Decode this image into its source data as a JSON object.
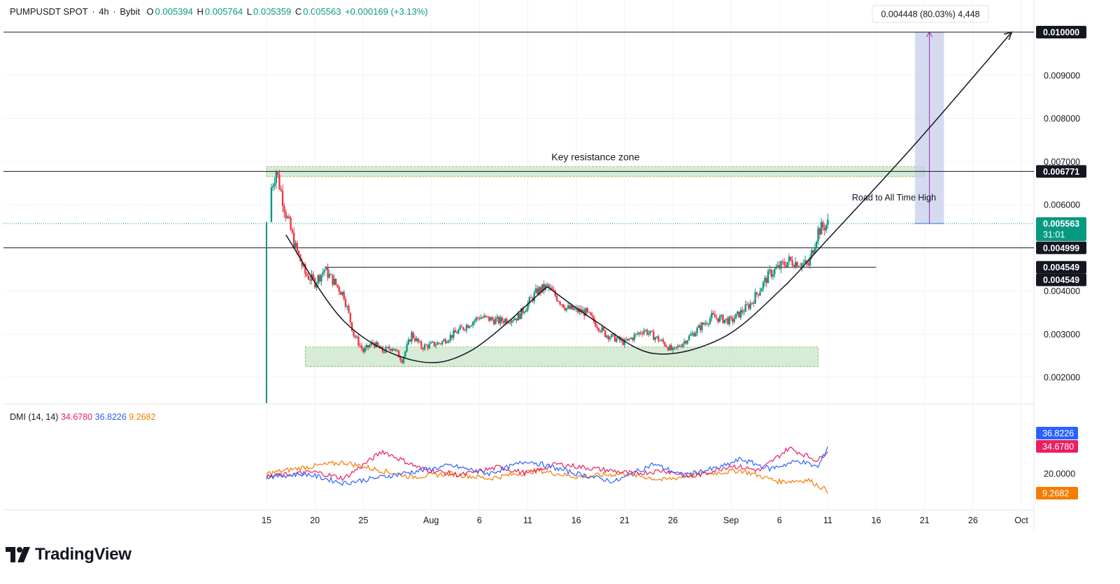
{
  "header": {
    "symbol": "PUMPUSDT SPOT",
    "sep1": "·",
    "interval": "4h",
    "sep2": "·",
    "exchange": "Bybit",
    "o_label": "O",
    "o_value": "0.005394",
    "h_label": "H",
    "h_value": "0.005764",
    "l_label": "L",
    "l_value": "0.005359",
    "c_label": "C",
    "c_value": "0.005563",
    "change": "+0.000169 (+3.13%)"
  },
  "indicator": {
    "name": "DMI (14, 14)",
    "plus_di": "34.6780",
    "minus_di": "36.8226",
    "adx": "9.2682"
  },
  "brand": {
    "name": "TradingView"
  },
  "colors": {
    "up": "#089981",
    "down": "#f23645",
    "plus_di": "#e91e63",
    "minus_di": "#2962ff",
    "adx": "#f57c00",
    "zone_fill": "#c8e6c9",
    "projection_fill": "#c5cae9",
    "projection_line": "#9c27b0"
  },
  "chart_data": {
    "type": "candlestick",
    "title": "",
    "y_axis": {
      "min": 0.0014,
      "max": 0.0105,
      "ticks": [
        0.002,
        0.003,
        0.004,
        0.006,
        0.007,
        0.008,
        0.009
      ],
      "tick_labels": [
        "0.002000",
        "0.003000",
        "0.004000",
        "0.006000",
        "0.007000",
        "0.008000",
        "0.009000"
      ]
    },
    "x_axis": {
      "tick_labels": [
        "15",
        "20",
        "25",
        "Aug",
        "6",
        "11",
        "16",
        "21",
        "26",
        "Sep",
        "6",
        "11",
        "16",
        "21",
        "26",
        "Oct"
      ],
      "tick_dates": [
        "2025-07-15",
        "2025-07-20",
        "2025-07-25",
        "2025-08-01",
        "2025-08-06",
        "2025-08-11",
        "2025-08-16",
        "2025-08-21",
        "2025-08-26",
        "2025-09-01",
        "2025-09-06",
        "2025-09-11",
        "2025-09-16",
        "2025-09-21",
        "2025-09-26",
        "2025-10-01"
      ]
    },
    "price_path": [
      [
        "2025-07-15",
        0.0014
      ],
      [
        "2025-07-15",
        0.0056
      ],
      [
        "2025-07-15",
        0.006
      ],
      [
        "2025-07-16",
        0.0068
      ],
      [
        "2025-07-17",
        0.0058
      ],
      [
        "2025-07-18",
        0.005
      ],
      [
        "2025-07-19",
        0.0044
      ],
      [
        "2025-07-20",
        0.0042
      ],
      [
        "2025-07-21",
        0.0045
      ],
      [
        "2025-07-22",
        0.0042
      ],
      [
        "2025-07-23",
        0.0039
      ],
      [
        "2025-07-24",
        0.003
      ],
      [
        "2025-07-25",
        0.0026
      ],
      [
        "2025-07-26",
        0.0028
      ],
      [
        "2025-07-27",
        0.0026
      ],
      [
        "2025-07-28",
        0.0027
      ],
      [
        "2025-07-29",
        0.0024
      ],
      [
        "2025-07-30",
        0.003
      ],
      [
        "2025-07-31",
        0.0027
      ],
      [
        "2025-08-02",
        0.0028
      ],
      [
        "2025-08-04",
        0.0031
      ],
      [
        "2025-08-06",
        0.0034
      ],
      [
        "2025-08-08",
        0.0033
      ],
      [
        "2025-08-10",
        0.0034
      ],
      [
        "2025-08-12",
        0.004
      ],
      [
        "2025-08-13",
        0.0041
      ],
      [
        "2025-08-15",
        0.0036
      ],
      [
        "2025-08-17",
        0.0035
      ],
      [
        "2025-08-19",
        0.003
      ],
      [
        "2025-08-21",
        0.0028
      ],
      [
        "2025-08-23",
        0.0031
      ],
      [
        "2025-08-25",
        0.0028
      ],
      [
        "2025-08-26",
        0.0026
      ],
      [
        "2025-08-28",
        0.003
      ],
      [
        "2025-08-30",
        0.0034
      ],
      [
        "2025-09-01",
        0.0033
      ],
      [
        "2025-09-03",
        0.0037
      ],
      [
        "2025-09-05",
        0.0044
      ],
      [
        "2025-09-07",
        0.0047
      ],
      [
        "2025-09-09",
        0.0046
      ],
      [
        "2025-09-10",
        0.0054
      ],
      [
        "2025-09-11",
        0.005563
      ]
    ],
    "levels": [
      {
        "price": 0.01,
        "label": "0.010000"
      },
      {
        "price": 0.006771,
        "label": "0.006771"
      },
      {
        "price": 0.004999,
        "label": "0.004999"
      },
      {
        "price": 0.004549,
        "label": "0.004549"
      },
      {
        "price": 0.004549,
        "label": "0.004549"
      }
    ],
    "last_price": {
      "price": 0.005563,
      "label": "0.005563",
      "countdown": "31:01"
    },
    "zones": [
      {
        "name": "resistance",
        "from": "2025-07-15",
        "to": "2025-09-21",
        "low": 0.00665,
        "high": 0.00688,
        "label": "Key resistance zone"
      },
      {
        "name": "support",
        "from": "2025-07-19",
        "to": "2025-09-10",
        "low": 0.00225,
        "high": 0.0027
      }
    ],
    "cup_curves": [
      {
        "points": [
          [
            "2025-07-17",
            0.0053
          ],
          [
            "2025-07-23",
            0.0033
          ],
          [
            "2025-07-30",
            0.0024
          ],
          [
            "2025-08-05",
            0.0026
          ],
          [
            "2025-08-13",
            0.0041
          ]
        ]
      },
      {
        "points": [
          [
            "2025-08-13",
            0.0041
          ],
          [
            "2025-08-18",
            0.0033
          ],
          [
            "2025-08-24",
            0.00255
          ],
          [
            "2025-08-31",
            0.0029
          ],
          [
            "2025-09-06",
            0.004
          ],
          [
            "2025-09-11",
            0.0052
          ],
          [
            "2025-09-20",
            0.0074
          ],
          [
            "2025-09-30",
            0.01
          ]
        ]
      }
    ],
    "projection": {
      "from": "2025-09-20",
      "to": "2025-09-23",
      "low": 0.005563,
      "high": 0.01,
      "label": "0.004448 (80.03%) 4,448",
      "note": "Road to All Time High"
    },
    "dmi": {
      "y_axis": {
        "tick_labels": [
          "20.0000"
        ]
      },
      "plus_di": [
        [
          "2025-07-15",
          18
        ],
        [
          "2025-07-20",
          21
        ],
        [
          "2025-07-23",
          17
        ],
        [
          "2025-07-27",
          34
        ],
        [
          "2025-07-31",
          23
        ],
        [
          "2025-08-04",
          19
        ],
        [
          "2025-08-08",
          24
        ],
        [
          "2025-08-11",
          20
        ],
        [
          "2025-08-14",
          26
        ],
        [
          "2025-08-18",
          23
        ],
        [
          "2025-08-22",
          20
        ],
        [
          "2025-08-25",
          22
        ],
        [
          "2025-08-28",
          18
        ],
        [
          "2025-09-01",
          25
        ],
        [
          "2025-09-04",
          22
        ],
        [
          "2025-09-07",
          36
        ],
        [
          "2025-09-10",
          28
        ],
        [
          "2025-09-11",
          34.678
        ]
      ],
      "minus_di": [
        [
          "2025-07-15",
          18
        ],
        [
          "2025-07-19",
          20
        ],
        [
          "2025-07-23",
          14
        ],
        [
          "2025-07-26",
          17
        ],
        [
          "2025-07-31",
          22
        ],
        [
          "2025-08-03",
          25
        ],
        [
          "2025-08-07",
          20
        ],
        [
          "2025-08-11",
          28
        ],
        [
          "2025-08-16",
          20
        ],
        [
          "2025-08-20",
          15
        ],
        [
          "2025-08-24",
          26
        ],
        [
          "2025-08-27",
          19
        ],
        [
          "2025-08-31",
          24
        ],
        [
          "2025-09-02",
          29
        ],
        [
          "2025-09-05",
          23
        ],
        [
          "2025-09-08",
          28
        ],
        [
          "2025-09-10",
          24
        ],
        [
          "2025-09-11",
          36.8226
        ]
      ],
      "adx": [
        [
          "2025-07-15",
          20
        ],
        [
          "2025-07-19",
          24
        ],
        [
          "2025-07-23",
          27
        ],
        [
          "2025-07-26",
          23
        ],
        [
          "2025-07-30",
          18
        ],
        [
          "2025-08-03",
          20
        ],
        [
          "2025-08-07",
          17
        ],
        [
          "2025-08-12",
          22
        ],
        [
          "2025-08-16",
          18
        ],
        [
          "2025-08-21",
          20
        ],
        [
          "2025-08-25",
          16
        ],
        [
          "2025-08-28",
          19
        ],
        [
          "2025-09-02",
          22
        ],
        [
          "2025-09-06",
          15
        ],
        [
          "2025-09-09",
          16
        ],
        [
          "2025-09-11",
          9.2682
        ]
      ]
    }
  }
}
